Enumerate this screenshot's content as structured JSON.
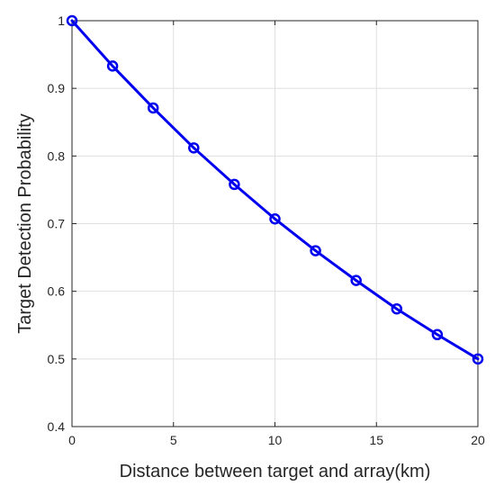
{
  "chart_data": {
    "type": "line",
    "title": "",
    "xlabel": "Distance between target and array(km)",
    "ylabel": "Target Detection Probability",
    "xlim": [
      0,
      20
    ],
    "ylim": [
      0.4,
      1
    ],
    "xticks": [
      "0",
      "5",
      "10",
      "15",
      "20"
    ],
    "yticks": [
      "0.4",
      "0.5",
      "0.6",
      "0.7",
      "0.8",
      "0.9",
      "1"
    ],
    "grid": true,
    "legend": "none",
    "series": [
      {
        "color": "#0000ee",
        "marker": "circle",
        "x": [
          0,
          2,
          4,
          6,
          8,
          10,
          12,
          14,
          16,
          18,
          20
        ],
        "y": [
          1.0,
          0.933,
          0.871,
          0.812,
          0.758,
          0.707,
          0.66,
          0.616,
          0.574,
          0.536,
          0.5
        ]
      }
    ]
  }
}
